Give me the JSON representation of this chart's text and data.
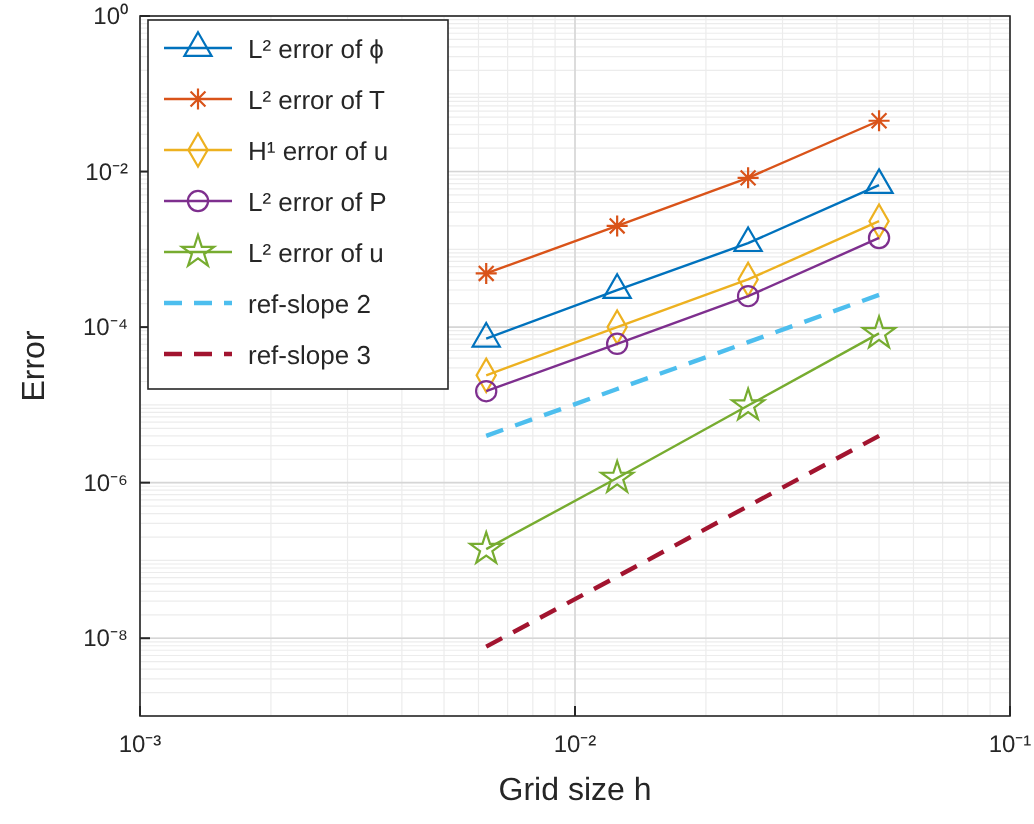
{
  "chart_data": {
    "type": "line",
    "xlabel": "Grid size h",
    "ylabel": "Error",
    "log": "xy",
    "grid": true,
    "legend": "top left",
    "x": [
      0.00625,
      0.0125,
      0.025,
      0.05
    ],
    "xlim": [
      0.001,
      0.1
    ],
    "xticks": [
      {
        "value": 0.001,
        "label": "10⁻³"
      },
      {
        "value": 0.01,
        "label": "10⁻²"
      },
      {
        "value": 0.1,
        "label": "10⁻¹"
      }
    ],
    "ylim": [
      1e-09,
      1
    ],
    "yticks": [
      {
        "value": 1,
        "label": "10⁰"
      },
      {
        "value": 0.01,
        "label": "10⁻²"
      },
      {
        "value": 0.0001,
        "label": "10⁻⁴"
      },
      {
        "value": 1e-06,
        "label": "10⁻⁶"
      },
      {
        "value": 1e-08,
        "label": "10⁻⁸"
      }
    ],
    "series": [
      {
        "name": "L² error of ϕ",
        "color": "#0072bd",
        "marker": "triangle",
        "values": [
          7.1e-05,
          0.0003,
          0.0012,
          0.0067
        ]
      },
      {
        "name": "L² error of T",
        "color": "#d95319",
        "marker": "cross",
        "values": [
          0.00049,
          0.002,
          0.0083,
          0.045
        ]
      },
      {
        "name": "H¹ error of u",
        "color": "#edb120",
        "marker": "diamond",
        "values": [
          2.4e-05,
          0.0001,
          0.00041,
          0.0023
        ]
      },
      {
        "name": "L² error of P",
        "color": "#7e2f8e",
        "marker": "circle",
        "values": [
          1.5e-05,
          6.1e-05,
          0.00025,
          0.0014
        ]
      },
      {
        "name": "L² error of u",
        "color": "#77ac30",
        "marker": "star",
        "values": [
          1.4e-07,
          1.15e-06,
          9.8e-06,
          8.3e-05
        ]
      },
      {
        "name": "ref-slope 2",
        "color": "#4dbeee",
        "marker": "none",
        "line_style": "dashed",
        "values": [
          4e-06,
          1.6e-05,
          6.4e-05,
          0.00026
        ]
      },
      {
        "name": "ref-slope 3",
        "color": "#a2142f",
        "marker": "none",
        "line_style": "dashed",
        "values": [
          7.8e-09,
          6.2e-08,
          5e-07,
          4e-06
        ]
      }
    ]
  }
}
